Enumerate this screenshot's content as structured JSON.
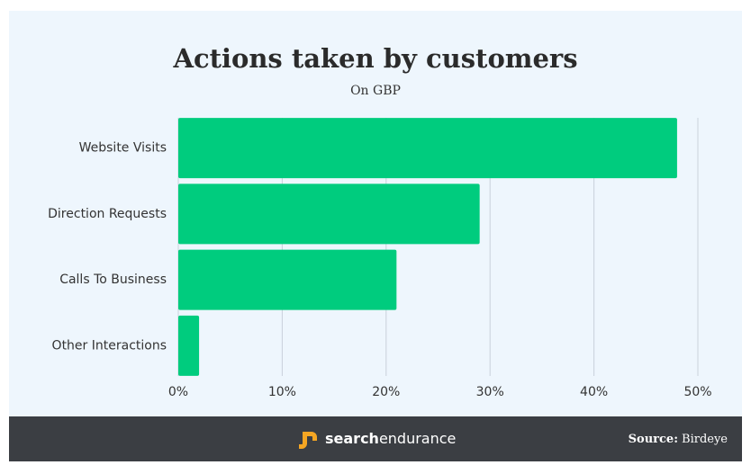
{
  "chart_data": {
    "type": "hbar",
    "title": "Actions taken by customers",
    "subtitle": "On GBP",
    "categories": [
      "Website Visits",
      "Direction Requests",
      "Calls To Business",
      "Other Interactions"
    ],
    "values": [
      48,
      29,
      21,
      2
    ],
    "color": "#00cc7e",
    "xlim": [
      0,
      50
    ],
    "xticks": [
      {
        "value": 0,
        "label": "0%"
      },
      {
        "value": 10,
        "label": "10%"
      },
      {
        "value": 20,
        "label": "20%"
      },
      {
        "value": 30,
        "label": "30%"
      },
      {
        "value": 40,
        "label": "40%"
      },
      {
        "value": 50,
        "label": "50%"
      }
    ],
    "grid": true
  },
  "footer": {
    "brand_bold": "search",
    "brand_light": "endurance",
    "source_label": "Source:",
    "source": "Birdeye"
  }
}
